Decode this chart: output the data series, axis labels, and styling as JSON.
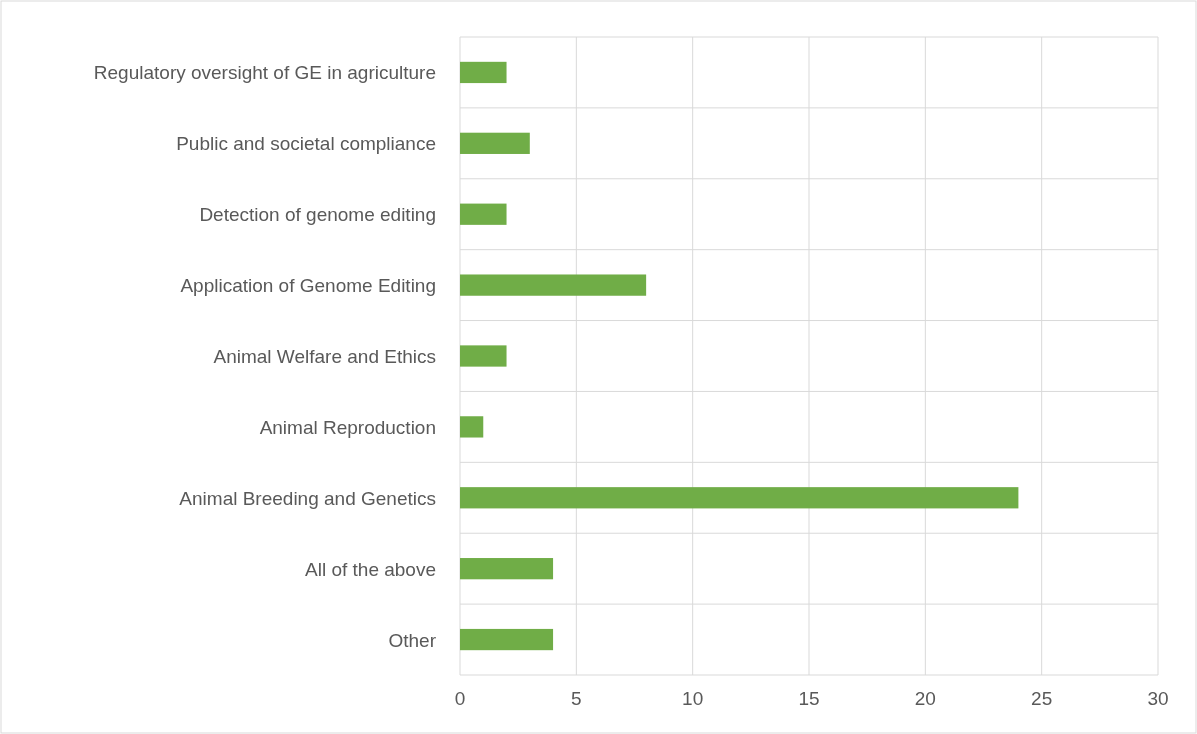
{
  "chart_data": {
    "type": "bar",
    "orientation": "horizontal",
    "categories": [
      "Regulatory oversight of GE in agriculture",
      "Public and societal compliance",
      "Detection of genome editing",
      "Application of Genome Editing",
      "Animal Welfare and Ethics",
      "Animal Reproduction",
      "Animal Breeding and Genetics",
      "All of the above",
      "Other"
    ],
    "values": [
      2,
      3,
      2,
      8,
      2,
      1,
      24,
      4,
      4
    ],
    "color": "#70ad47",
    "xlim": [
      0,
      30
    ],
    "xticks": [
      0,
      5,
      10,
      15,
      20,
      25,
      30
    ],
    "grid": true
  }
}
